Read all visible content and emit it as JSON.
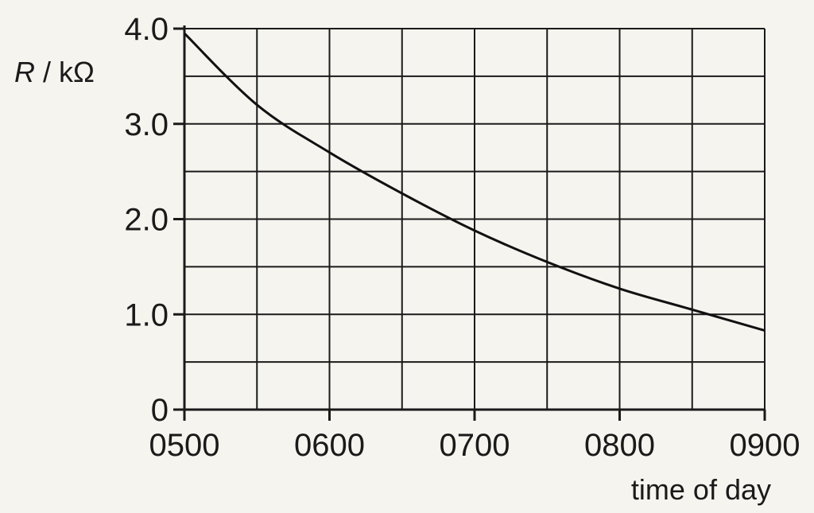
{
  "chart_data": {
    "type": "line",
    "title": "",
    "xlabel": "time of day",
    "ylabel_symbol": "R",
    "ylabel_unit": " / kΩ",
    "x_tick_labels": [
      "0500",
      "0600",
      "0700",
      "0800",
      "0900"
    ],
    "y_tick_labels": [
      "0",
      "1.0",
      "2.0",
      "3.0",
      "4.0"
    ],
    "xlim": [
      "0500",
      "0900"
    ],
    "ylim": [
      0,
      4.0
    ],
    "grid": true,
    "series": [
      {
        "x": [
          "0500",
          "0530",
          "0600",
          "0630",
          "0700",
          "0730",
          "0800",
          "0830",
          "0900"
        ],
        "y": [
          3.95,
          3.2,
          2.7,
          2.27,
          1.88,
          1.55,
          1.27,
          1.05,
          0.83
        ]
      }
    ]
  }
}
